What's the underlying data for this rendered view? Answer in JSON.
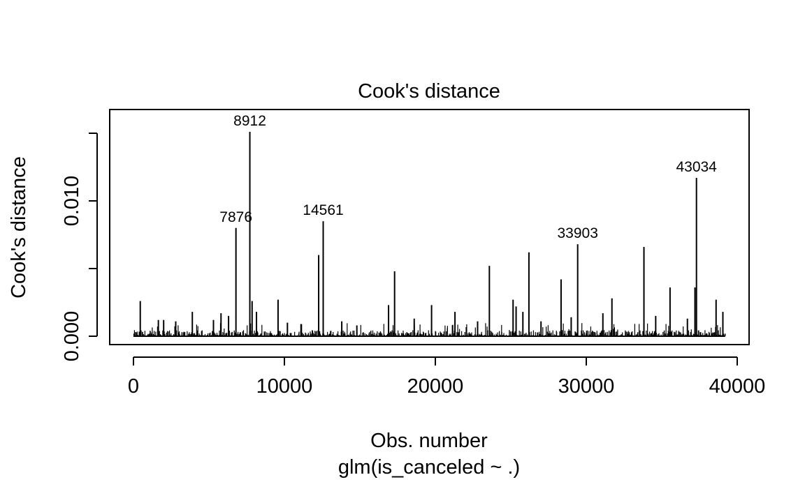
{
  "chart_data": {
    "type": "bar",
    "title": "Cook's distance",
    "xlabel": "Obs. number",
    "subtitle": "glm(is_canceled ~ .)",
    "ylabel": "Cook's distance",
    "xlim": [
      0,
      40000
    ],
    "ylim": [
      0.0,
      0.0145
    ],
    "x_ticks": [
      0,
      10000,
      20000,
      30000,
      40000
    ],
    "x_tick_labels": [
      "0",
      "10000",
      "20000",
      "30000",
      "40000"
    ],
    "y_ticks": [
      0.0,
      0.005,
      0.01
    ],
    "y_tick_labels": [
      "0.000",
      "",
      "0.010"
    ],
    "grid": false,
    "labeled_points": [
      {
        "label": "8912",
        "x": 7710,
        "y": 0.0151
      },
      {
        "label": "7876",
        "x": 6790,
        "y": 0.008
      },
      {
        "label": "14561",
        "x": 12570,
        "y": 0.0085
      },
      {
        "label": "33903",
        "x": 29430,
        "y": 0.0068
      },
      {
        "label": "43034",
        "x": 37300,
        "y": 0.0117
      }
    ],
    "spikes": [
      {
        "x": 450,
        "y": 0.0026
      },
      {
        "x": 1650,
        "y": 0.0012
      },
      {
        "x": 2000,
        "y": 0.0012
      },
      {
        "x": 2800,
        "y": 0.0011
      },
      {
        "x": 3900,
        "y": 0.0018
      },
      {
        "x": 5300,
        "y": 0.0012
      },
      {
        "x": 5800,
        "y": 0.0017
      },
      {
        "x": 6300,
        "y": 0.0015
      },
      {
        "x": 7860,
        "y": 0.0026
      },
      {
        "x": 8150,
        "y": 0.0018
      },
      {
        "x": 9580,
        "y": 0.0027
      },
      {
        "x": 10200,
        "y": 0.001
      },
      {
        "x": 11100,
        "y": 0.0009
      },
      {
        "x": 12270,
        "y": 0.006
      },
      {
        "x": 13800,
        "y": 0.0011
      },
      {
        "x": 14800,
        "y": 0.0008
      },
      {
        "x": 16900,
        "y": 0.0023
      },
      {
        "x": 17300,
        "y": 0.0048
      },
      {
        "x": 18600,
        "y": 0.0013
      },
      {
        "x": 19750,
        "y": 0.0023
      },
      {
        "x": 21300,
        "y": 0.0018
      },
      {
        "x": 22800,
        "y": 0.0011
      },
      {
        "x": 23580,
        "y": 0.0052
      },
      {
        "x": 25150,
        "y": 0.0027
      },
      {
        "x": 25350,
        "y": 0.0022
      },
      {
        "x": 25800,
        "y": 0.0018
      },
      {
        "x": 26200,
        "y": 0.0062
      },
      {
        "x": 27000,
        "y": 0.0011
      },
      {
        "x": 28330,
        "y": 0.0042
      },
      {
        "x": 29000,
        "y": 0.0014
      },
      {
        "x": 31100,
        "y": 0.0017
      },
      {
        "x": 31700,
        "y": 0.0028
      },
      {
        "x": 33820,
        "y": 0.0066
      },
      {
        "x": 34600,
        "y": 0.0015
      },
      {
        "x": 35550,
        "y": 0.0036
      },
      {
        "x": 36700,
        "y": 0.0013
      },
      {
        "x": 37200,
        "y": 0.0036
      },
      {
        "x": 38600,
        "y": 0.0027
      },
      {
        "x": 39050,
        "y": 0.0018
      }
    ],
    "baseline_n_obs": 39200
  }
}
